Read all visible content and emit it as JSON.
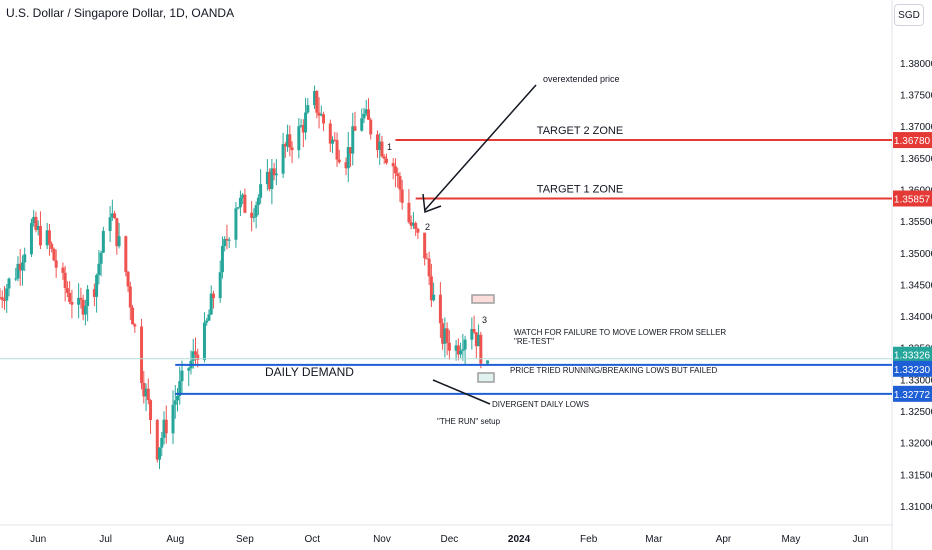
{
  "header": {
    "title": "U.S. Dollar / Singapore Dollar, 1D, OANDA",
    "currency": "SGD"
  },
  "colors": {
    "up": "#26a69a",
    "down": "#ef5350",
    "target": "#e53935",
    "demand": "#1e5fd6",
    "current": "#b2dfdb"
  },
  "chart_data": {
    "type": "candlestick",
    "ylim": [
      1.307,
      1.3855
    ],
    "y_ticks": [
      "1.31000",
      "1.31500",
      "1.32000",
      "1.32500",
      "1.33000",
      "1.33500",
      "1.34000",
      "1.34500",
      "1.35000",
      "1.35500",
      "1.36000",
      "1.36500",
      "1.37000",
      "1.37500",
      "1.38000"
    ],
    "x_ticks": [
      "Jun",
      "Jul",
      "Aug",
      "Sep",
      "Oct",
      "Nov",
      "Dec",
      "2024",
      "Feb",
      "Mar",
      "Apr",
      "May",
      "Jun"
    ],
    "x_start": "2023-05-15",
    "x_end": "2024-06-15",
    "price_path": [
      [
        "2023-05-15",
        1.343
      ],
      [
        "2023-05-22",
        1.347
      ],
      [
        "2023-05-29",
        1.354
      ],
      [
        "2023-06-05",
        1.352
      ],
      [
        "2023-06-12",
        1.345
      ],
      [
        "2023-06-19",
        1.341
      ],
      [
        "2023-06-26",
        1.345
      ],
      [
        "2023-07-03",
        1.357
      ],
      [
        "2023-07-10",
        1.347
      ],
      [
        "2023-07-17",
        1.331
      ],
      [
        "2023-07-24",
        1.319
      ],
      [
        "2023-07-31",
        1.326
      ],
      [
        "2023-08-07",
        1.332
      ],
      [
        "2023-08-14",
        1.337
      ],
      [
        "2023-08-21",
        1.348
      ],
      [
        "2023-08-28",
        1.358
      ],
      [
        "2023-09-04",
        1.357
      ],
      [
        "2023-09-11",
        1.361
      ],
      [
        "2023-09-18",
        1.366
      ],
      [
        "2023-09-25",
        1.369
      ],
      [
        "2023-10-02",
        1.374
      ],
      [
        "2023-10-09",
        1.368
      ],
      [
        "2023-10-16",
        1.365
      ],
      [
        "2023-10-23",
        1.372
      ],
      [
        "2023-10-30",
        1.368
      ],
      [
        "2023-11-06",
        1.364
      ],
      [
        "2023-11-13",
        1.355
      ],
      [
        "2023-11-20",
        1.35
      ],
      [
        "2023-11-27",
        1.337
      ],
      [
        "2023-12-04",
        1.335
      ],
      [
        "2023-12-11",
        1.339
      ],
      [
        "2023-12-18",
        1.331
      ]
    ],
    "price_lines": [
      {
        "name": "target-2-zone",
        "value": 1.3678,
        "label": "1.36780",
        "text": "TARGET 2 ZONE",
        "start": "2023-11-07"
      },
      {
        "name": "target-1-zone",
        "value": 1.35857,
        "label": "1.35857",
        "text": "TARGET 1 ZONE",
        "start": "2023-11-16"
      },
      {
        "name": "demand-top",
        "value": 1.3323,
        "label": "1.33230",
        "start": "2023-08-01"
      },
      {
        "name": "demand-bottom",
        "value": 1.32772,
        "label": "1.32772",
        "start": "2023-08-01"
      }
    ],
    "current_price": {
      "value": 1.33326,
      "label": "1.33326"
    },
    "annotations": {
      "overextended": "overextended price",
      "label_1": "1",
      "label_2": "2",
      "label_3": "3",
      "daily_demand": "DAILY DEMAND",
      "watch_1": "WATCH FOR FAILURE TO MOVE LOWER FROM SELLER",
      "watch_2": "\"RE-TEST\"",
      "price_tried": "PRICE TRIED RUNNING/BREAKING LOWS BUT FAILED",
      "divergent": "DIVERGENT DAILY LOWS",
      "the_run": "\"THE RUN\" setup"
    }
  }
}
